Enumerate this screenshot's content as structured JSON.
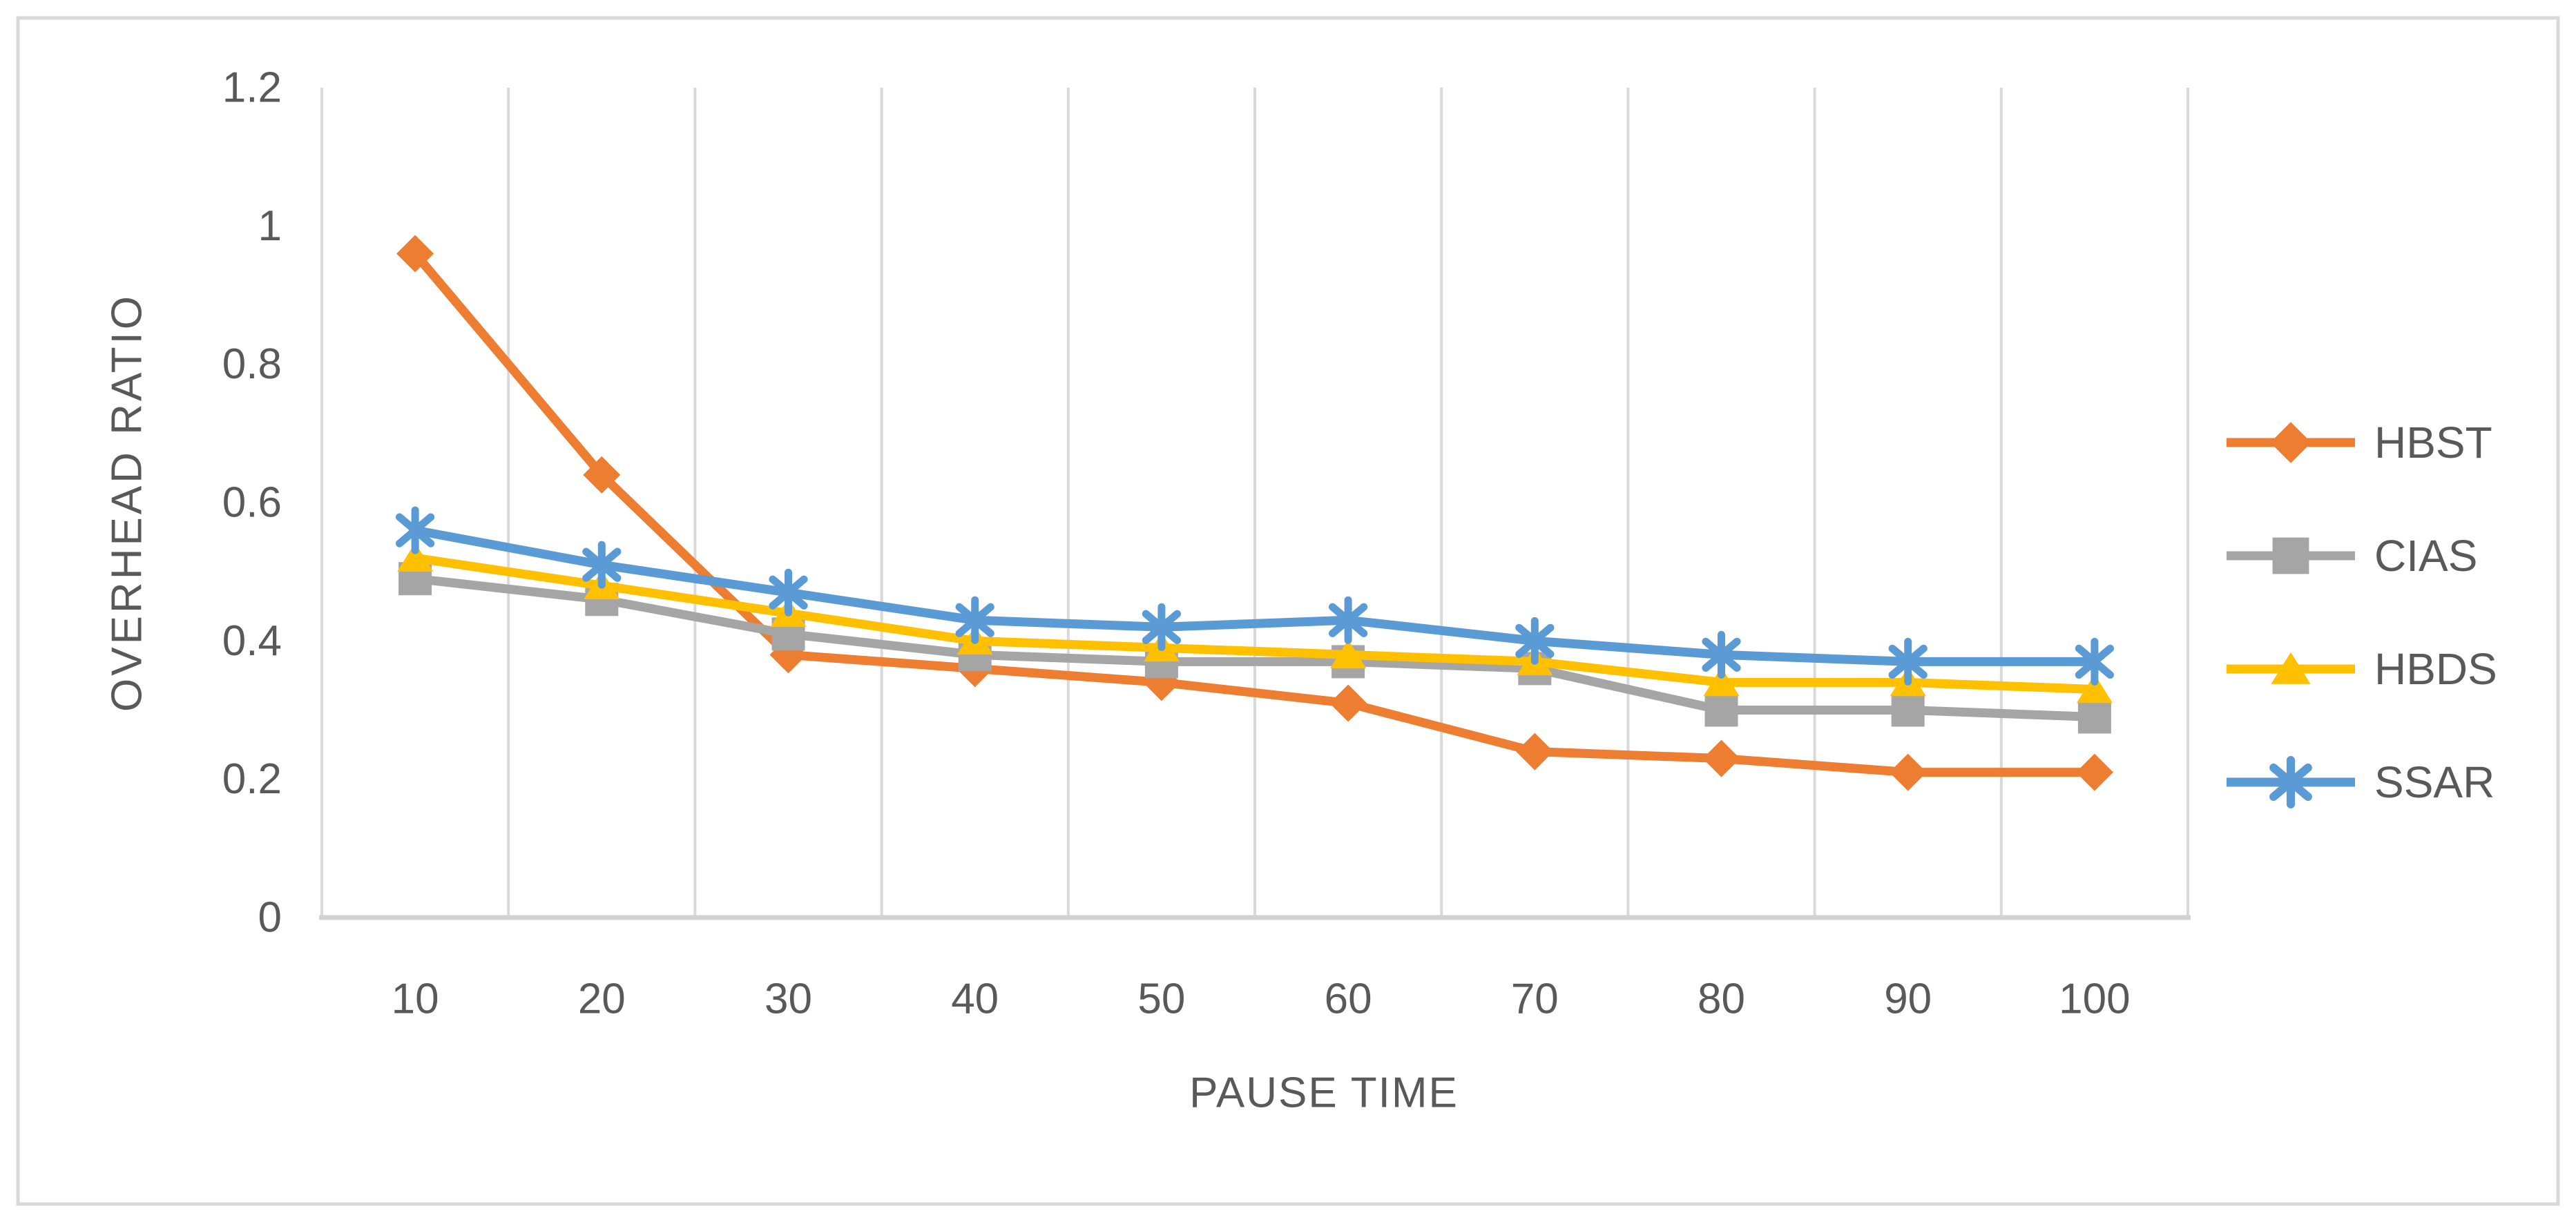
{
  "figure": {
    "background_color": "#FFFFFF",
    "border_color": "#D9D9D9"
  },
  "chart_data": {
    "type": "line",
    "title": "",
    "xlabel": "PAUSE TIME",
    "ylabel": "OVERHEAD RATIO",
    "categories": [
      10,
      20,
      30,
      40,
      50,
      60,
      70,
      80,
      90,
      100
    ],
    "x_tick_labels": [
      "10",
      "20",
      "30",
      "40",
      "50",
      "60",
      "70",
      "80",
      "90",
      "100"
    ],
    "y_ticks": [
      0,
      0.2,
      0.4,
      0.6,
      0.8,
      1,
      1.2
    ],
    "y_tick_labels": [
      "0",
      "0.2",
      "0.4",
      "0.6",
      "0.8",
      "1",
      "1.2"
    ],
    "ylim": [
      0,
      1.2
    ],
    "grid": "vertical-only",
    "gridline_color": "#D9D9D9",
    "axis_line_color": "#D2D2D2",
    "axis_text_color": "#595959",
    "legend_position": "right",
    "legend_labels": [
      "HBST",
      "CIAS",
      "HBDS",
      "SSAR"
    ],
    "series": [
      {
        "name": "HBST",
        "color": "#ED7D31",
        "marker": "diamond",
        "values": [
          0.96,
          0.64,
          0.38,
          0.36,
          0.34,
          0.31,
          0.24,
          0.23,
          0.21,
          0.21
        ]
      },
      {
        "name": "CIAS",
        "color": "#A5A5A5",
        "marker": "square",
        "values": [
          0.49,
          0.46,
          0.41,
          0.38,
          0.37,
          0.37,
          0.36,
          0.3,
          0.3,
          0.29
        ]
      },
      {
        "name": "HBDS",
        "color": "#FFC000",
        "marker": "triangle",
        "values": [
          0.52,
          0.48,
          0.44,
          0.4,
          0.39,
          0.38,
          0.37,
          0.34,
          0.34,
          0.33
        ]
      },
      {
        "name": "SSAR",
        "color": "#5B9BD5",
        "marker": "asterisk",
        "values": [
          0.56,
          0.51,
          0.47,
          0.43,
          0.42,
          0.43,
          0.4,
          0.38,
          0.37,
          0.37
        ]
      }
    ]
  }
}
